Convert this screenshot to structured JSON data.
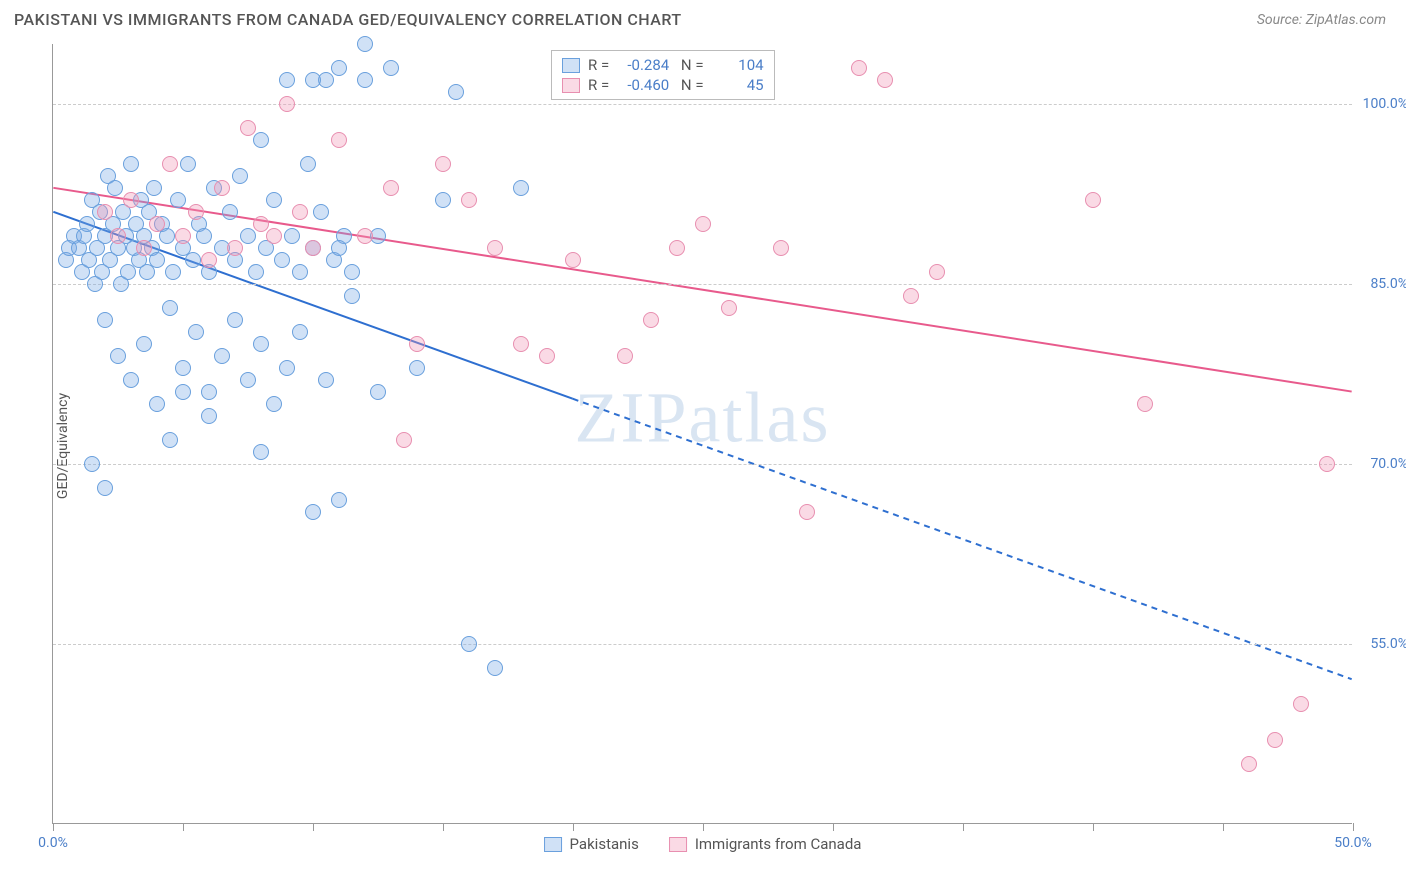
{
  "header": {
    "title": "PAKISTANI VS IMMIGRANTS FROM CANADA GED/EQUIVALENCY CORRELATION CHART",
    "source": "Source: ZipAtlas.com"
  },
  "chart": {
    "type": "scatter",
    "ylabel": "GED/Equivalency",
    "watermark": "ZIPatlas",
    "background_color": "#ffffff",
    "grid_color": "#cccccc",
    "axis_color": "#999999",
    "tick_label_color": "#4a7ec8",
    "xlim": [
      0,
      50
    ],
    "ylim": [
      40,
      105
    ],
    "xtick_positions": [
      0,
      5,
      10,
      15,
      20,
      25,
      30,
      35,
      40,
      45,
      50
    ],
    "xtick_labels": {
      "0": "0.0%",
      "50": "50.0%"
    },
    "ytick_positions": [
      55,
      70,
      85,
      100
    ],
    "ytick_labels": {
      "55": "55.0%",
      "70": "70.0%",
      "85": "85.0%",
      "100": "100.0%"
    },
    "point_radius": 8,
    "series": [
      {
        "name": "Pakistanis",
        "color_fill": "rgba(120,170,230,0.35)",
        "color_stroke": "#6aa0dd",
        "trend_color": "#2e6fd0",
        "trend_width": 2,
        "trend_solid_until_x": 20,
        "trend": {
          "x1": 0,
          "y1": 91,
          "x2": 50,
          "y2": 52
        },
        "R": "-0.284",
        "N": "104",
        "points": [
          [
            0.5,
            87
          ],
          [
            0.6,
            88
          ],
          [
            0.8,
            89
          ],
          [
            1.0,
            88
          ],
          [
            1.1,
            86
          ],
          [
            1.2,
            89
          ],
          [
            1.3,
            90
          ],
          [
            1.4,
            87
          ],
          [
            1.5,
            92
          ],
          [
            1.6,
            85
          ],
          [
            1.7,
            88
          ],
          [
            1.8,
            91
          ],
          [
            1.9,
            86
          ],
          [
            2.0,
            89
          ],
          [
            2.1,
            94
          ],
          [
            2.2,
            87
          ],
          [
            2.3,
            90
          ],
          [
            2.4,
            93
          ],
          [
            2.5,
            88
          ],
          [
            2.6,
            85
          ],
          [
            2.7,
            91
          ],
          [
            2.8,
            89
          ],
          [
            2.9,
            86
          ],
          [
            3.0,
            95
          ],
          [
            3.1,
            88
          ],
          [
            3.2,
            90
          ],
          [
            3.3,
            87
          ],
          [
            3.4,
            92
          ],
          [
            3.5,
            89
          ],
          [
            3.6,
            86
          ],
          [
            3.7,
            91
          ],
          [
            3.8,
            88
          ],
          [
            3.9,
            93
          ],
          [
            4.0,
            87
          ],
          [
            4.2,
            90
          ],
          [
            4.4,
            89
          ],
          [
            4.6,
            86
          ],
          [
            4.8,
            92
          ],
          [
            5.0,
            88
          ],
          [
            5.2,
            95
          ],
          [
            5.4,
            87
          ],
          [
            5.6,
            90
          ],
          [
            5.8,
            89
          ],
          [
            6.0,
            86
          ],
          [
            6.2,
            93
          ],
          [
            6.5,
            88
          ],
          [
            6.8,
            91
          ],
          [
            7.0,
            87
          ],
          [
            7.2,
            94
          ],
          [
            7.5,
            89
          ],
          [
            7.8,
            86
          ],
          [
            8.0,
            97
          ],
          [
            8.2,
            88
          ],
          [
            8.5,
            92
          ],
          [
            8.8,
            87
          ],
          [
            9.0,
            102
          ],
          [
            9.2,
            89
          ],
          [
            9.5,
            86
          ],
          [
            9.8,
            95
          ],
          [
            10.0,
            88
          ],
          [
            10.3,
            91
          ],
          [
            10.5,
            102
          ],
          [
            10.8,
            87
          ],
          [
            11.0,
            103
          ],
          [
            11.2,
            89
          ],
          [
            11.5,
            86
          ],
          [
            12.0,
            105
          ],
          [
            2.0,
            82
          ],
          [
            2.5,
            79
          ],
          [
            3.0,
            77
          ],
          [
            3.5,
            80
          ],
          [
            4.0,
            75
          ],
          [
            4.5,
            83
          ],
          [
            5.0,
            78
          ],
          [
            5.5,
            81
          ],
          [
            6.0,
            76
          ],
          [
            6.5,
            79
          ],
          [
            7.0,
            82
          ],
          [
            7.5,
            77
          ],
          [
            8.0,
            80
          ],
          [
            8.5,
            75
          ],
          [
            9.0,
            78
          ],
          [
            9.5,
            81
          ],
          [
            1.5,
            70
          ],
          [
            2.0,
            68
          ],
          [
            4.5,
            72
          ],
          [
            5.0,
            76
          ],
          [
            6.0,
            74
          ],
          [
            8.0,
            71
          ],
          [
            10.0,
            66
          ],
          [
            10.5,
            77
          ],
          [
            11.0,
            67
          ],
          [
            11.5,
            84
          ],
          [
            12.0,
            102
          ],
          [
            12.5,
            89
          ],
          [
            13.0,
            103
          ],
          [
            14.0,
            78
          ],
          [
            15.0,
            92
          ],
          [
            15.5,
            101
          ],
          [
            16.0,
            55
          ],
          [
            17.0,
            53
          ],
          [
            18.0,
            93
          ],
          [
            10.0,
            102
          ],
          [
            11.0,
            88
          ],
          [
            12.5,
            76
          ]
        ]
      },
      {
        "name": "Immigrants from Canada",
        "color_fill": "rgba(240,150,180,0.35)",
        "color_stroke": "#e88fb0",
        "trend_color": "#e85a8c",
        "trend_width": 2,
        "trend_solid_until_x": 50,
        "trend": {
          "x1": 0,
          "y1": 93,
          "x2": 50,
          "y2": 76
        },
        "R": "-0.460",
        "N": "45",
        "points": [
          [
            2.0,
            91
          ],
          [
            2.5,
            89
          ],
          [
            3.0,
            92
          ],
          [
            3.5,
            88
          ],
          [
            4.0,
            90
          ],
          [
            4.5,
            95
          ],
          [
            5.0,
            89
          ],
          [
            5.5,
            91
          ],
          [
            6.0,
            87
          ],
          [
            6.5,
            93
          ],
          [
            7.0,
            88
          ],
          [
            7.5,
            98
          ],
          [
            8.0,
            90
          ],
          [
            8.5,
            89
          ],
          [
            9.0,
            100
          ],
          [
            9.5,
            91
          ],
          [
            10.0,
            88
          ],
          [
            11.0,
            97
          ],
          [
            12.0,
            89
          ],
          [
            13.0,
            93
          ],
          [
            13.5,
            72
          ],
          [
            14.0,
            80
          ],
          [
            15.0,
            95
          ],
          [
            16.0,
            92
          ],
          [
            17.0,
            88
          ],
          [
            18.0,
            80
          ],
          [
            19.0,
            79
          ],
          [
            20.0,
            87
          ],
          [
            22.0,
            79
          ],
          [
            23.0,
            82
          ],
          [
            24.0,
            88
          ],
          [
            25.0,
            90
          ],
          [
            26.0,
            83
          ],
          [
            28.0,
            88
          ],
          [
            29.0,
            66
          ],
          [
            31.0,
            103
          ],
          [
            32.0,
            102
          ],
          [
            33.0,
            84
          ],
          [
            34.0,
            86
          ],
          [
            40.0,
            92
          ],
          [
            42.0,
            75
          ],
          [
            46.0,
            45
          ],
          [
            48.0,
            50
          ],
          [
            49.0,
            70
          ],
          [
            47.0,
            47
          ]
        ]
      }
    ],
    "legend": {
      "items": [
        {
          "label": "Pakistanis"
        },
        {
          "label": "Immigrants from Canada"
        }
      ]
    }
  }
}
